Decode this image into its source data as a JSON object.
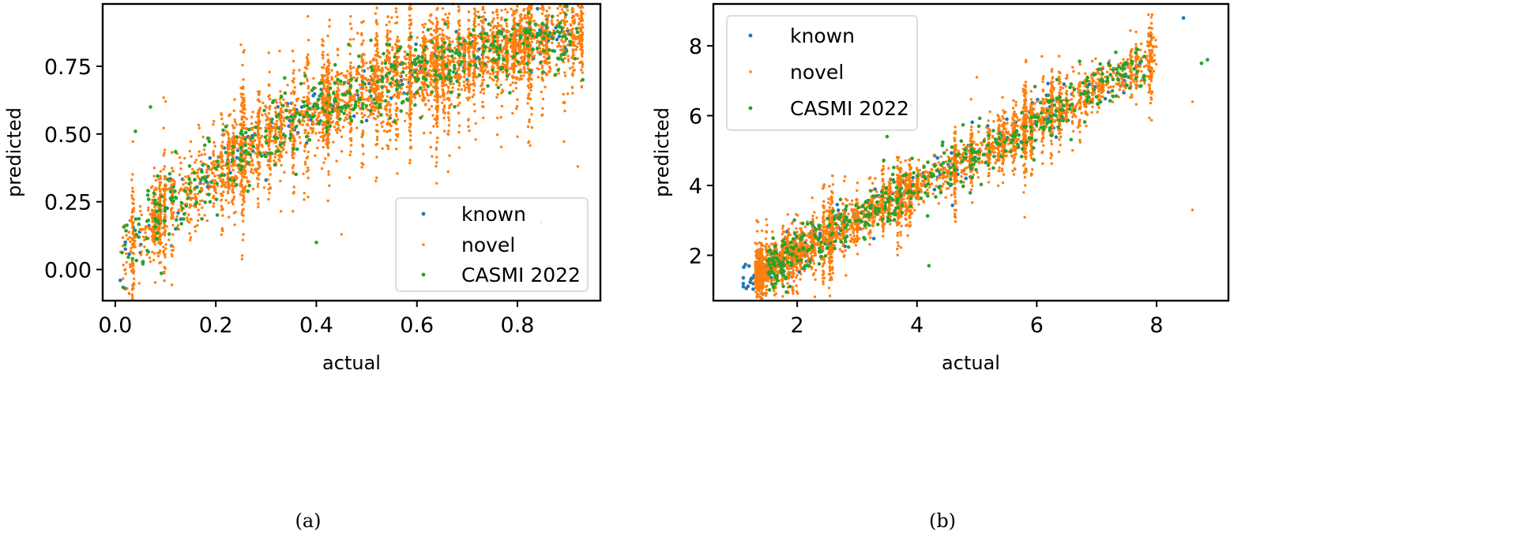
{
  "colors": {
    "known": "#1f77b4",
    "novel": "#ff7f0e",
    "casmi": "#2ca02c"
  },
  "chart_data": [
    {
      "type": "scatter",
      "panel": "(a)",
      "caption": "(a)",
      "xlabel": "actual",
      "ylabel": "predicted",
      "xlim": [
        -0.025,
        0.965
      ],
      "ylim": [
        -0.115,
        0.98
      ],
      "xticks": [
        0.0,
        0.2,
        0.4,
        0.6,
        0.8
      ],
      "xtick_labels": [
        "0.0",
        "0.2",
        "0.4",
        "0.6",
        "0.8"
      ],
      "yticks": [
        0.0,
        0.25,
        0.5,
        0.75
      ],
      "ytick_labels": [
        "0.00",
        "0.25",
        "0.50",
        "0.75"
      ],
      "grid": false,
      "legend": {
        "placement": "lower-right",
        "entries": [
          "known",
          "novel",
          "CASMI 2022"
        ]
      },
      "series": [
        {
          "name": "known",
          "color": "#1f77b4",
          "generator": {
            "count": 170,
            "x_range": [
              0.01,
              0.9
            ],
            "trend": "sat",
            "noise": 0.05
          },
          "points": [
            [
              0.01,
              -0.04
            ],
            [
              0.02,
              -0.07
            ],
            [
              0.12,
              0.15
            ],
            [
              0.3,
              0.33
            ],
            [
              0.5,
              0.55
            ],
            [
              0.7,
              0.7
            ],
            [
              0.86,
              0.85
            ],
            [
              0.9,
              0.88
            ]
          ]
        },
        {
          "name": "novel",
          "color": "#ff7f0e",
          "generator": {
            "count": 3200,
            "x_range": [
              0.01,
              0.93
            ],
            "trend": "sat",
            "noise": 0.13,
            "stripes": 90
          },
          "points": [
            [
              0.02,
              0.0
            ],
            [
              0.1,
              0.62
            ],
            [
              0.35,
              0.65
            ],
            [
              0.55,
              0.93
            ],
            [
              0.86,
              0.93
            ],
            [
              0.92,
              0.38
            ],
            [
              0.45,
              0.13
            ]
          ]
        },
        {
          "name": "CASMI 2022",
          "color": "#2ca02c",
          "generator": {
            "count": 520,
            "x_range": [
              0.01,
              0.92
            ],
            "trend": "sat",
            "noise": 0.07
          },
          "points": [
            [
              0.07,
              0.6
            ],
            [
              0.04,
              0.51
            ],
            [
              0.4,
              0.1
            ],
            [
              0.63,
              0.84
            ],
            [
              0.93,
              0.7
            ]
          ]
        }
      ]
    },
    {
      "type": "scatter",
      "panel": "(b)",
      "caption": "(b)",
      "xlabel": "actual",
      "ylabel": "predicted",
      "xlim": [
        0.6,
        9.2
      ],
      "ylim": [
        0.7,
        9.2
      ],
      "xticks": [
        2,
        4,
        6,
        8
      ],
      "xtick_labels": [
        "2",
        "4",
        "6",
        "8"
      ],
      "yticks": [
        2,
        4,
        6,
        8
      ],
      "ytick_labels": [
        "2",
        "4",
        "6",
        "8"
      ],
      "grid": false,
      "legend": {
        "placement": "upper-left",
        "entries": [
          "known",
          "novel",
          "CASMI 2022"
        ]
      },
      "series": [
        {
          "name": "known",
          "color": "#1f77b4",
          "generator": {
            "count": 170,
            "x_range": [
              1.1,
              7.9
            ],
            "trend": "lin",
            "noise": 0.35
          },
          "points": [
            [
              1.1,
              1.1
            ],
            [
              1.15,
              1.05
            ],
            [
              8.45,
              8.8
            ],
            [
              7.9,
              8.3
            ],
            [
              7.2,
              7.5
            ],
            [
              5.5,
              5.9
            ]
          ]
        },
        {
          "name": "novel",
          "color": "#ff7f0e",
          "generator": {
            "count": 3000,
            "x_range": [
              1.3,
              8.0
            ],
            "trend": "lin",
            "noise": 0.55,
            "stripes": 70
          },
          "points": [
            [
              8.6,
              6.4
            ],
            [
              8.6,
              3.3
            ],
            [
              3.9,
              6.3
            ],
            [
              5.0,
              7.1
            ],
            [
              7.85,
              8.0
            ],
            [
              1.3,
              1.7
            ]
          ]
        },
        {
          "name": "CASMI 2022",
          "color": "#2ca02c",
          "generator": {
            "count": 480,
            "x_range": [
              1.5,
              7.8
            ],
            "trend": "lin",
            "noise": 0.4
          },
          "points": [
            [
              8.85,
              7.6
            ],
            [
              8.75,
              7.5
            ],
            [
              3.5,
              5.4
            ],
            [
              4.2,
              1.7
            ],
            [
              7.5,
              7.5
            ]
          ]
        }
      ]
    }
  ]
}
